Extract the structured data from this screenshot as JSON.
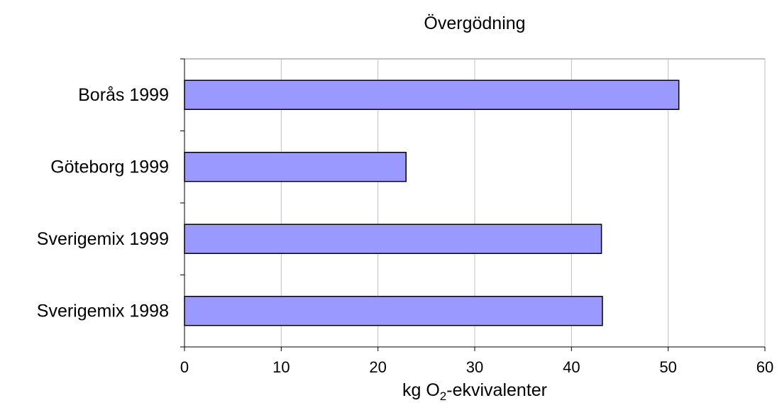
{
  "chart_data": {
    "type": "bar",
    "orientation": "horizontal",
    "title": "Övergödning",
    "xlabel": {
      "prefix": "kg O",
      "subscript": "2",
      "suffix": "-ekvivalenter"
    },
    "ylabel": "",
    "categories": [
      "Borås 1999",
      "Göteborg 1999",
      "Sverigemix 1999",
      "Sverigemix 1998"
    ],
    "values": [
      51.1,
      22.9,
      43.1,
      43.2
    ],
    "xlim": [
      0,
      60
    ],
    "xticks": [
      0,
      10,
      20,
      30,
      40,
      50,
      60
    ],
    "grid": "vertical",
    "legend": "none",
    "colors": {
      "bar_fill": "#9999ff",
      "bar_stroke": "#000000",
      "grid": "#c0c0c0",
      "plot_border": "#808080",
      "axis": "#000000"
    }
  }
}
